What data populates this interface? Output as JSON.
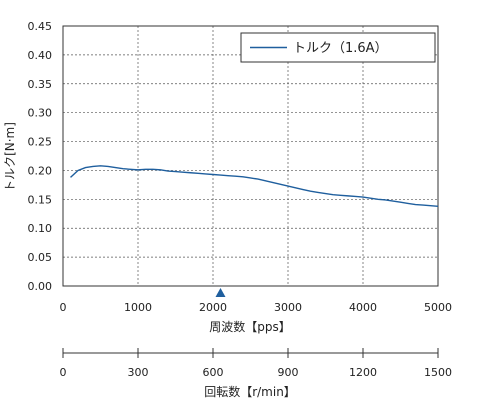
{
  "chart_data": {
    "type": "line",
    "ylabel": "トルク[N·m]",
    "xlabel": "周波数【pps】",
    "xlim": [
      0,
      5000
    ],
    "ylim": [
      0,
      0.45
    ],
    "x_ticks": [
      0,
      1000,
      2000,
      3000,
      4000,
      5000
    ],
    "y_ticks": [
      "0.00",
      "0.05",
      "0.10",
      "0.15",
      "0.20",
      "0.25",
      "0.30",
      "0.35",
      "0.40",
      "0.45"
    ],
    "grid": true,
    "legend_position": "top-right",
    "series": [
      {
        "name": "トルク（1.6A）",
        "color": "#1f5f9e",
        "points": [
          [
            100,
            0.188
          ],
          [
            200,
            0.2
          ],
          [
            300,
            0.205
          ],
          [
            400,
            0.207
          ],
          [
            500,
            0.208
          ],
          [
            600,
            0.207
          ],
          [
            700,
            0.205
          ],
          [
            800,
            0.203
          ],
          [
            900,
            0.202
          ],
          [
            1000,
            0.201
          ],
          [
            1100,
            0.202
          ],
          [
            1200,
            0.202
          ],
          [
            1300,
            0.201
          ],
          [
            1400,
            0.199
          ],
          [
            1500,
            0.198
          ],
          [
            1600,
            0.197
          ],
          [
            1700,
            0.196
          ],
          [
            1800,
            0.195
          ],
          [
            1900,
            0.194
          ],
          [
            2000,
            0.193
          ],
          [
            2100,
            0.192
          ],
          [
            2200,
            0.191
          ],
          [
            2300,
            0.19
          ],
          [
            2400,
            0.189
          ],
          [
            2500,
            0.187
          ],
          [
            2600,
            0.185
          ],
          [
            2700,
            0.182
          ],
          [
            2800,
            0.179
          ],
          [
            2900,
            0.176
          ],
          [
            3000,
            0.173
          ],
          [
            3100,
            0.17
          ],
          [
            3200,
            0.167
          ],
          [
            3300,
            0.164
          ],
          [
            3400,
            0.162
          ],
          [
            3500,
            0.16
          ],
          [
            3600,
            0.158
          ],
          [
            3700,
            0.157
          ],
          [
            3800,
            0.156
          ],
          [
            3900,
            0.155
          ],
          [
            4000,
            0.154
          ],
          [
            4100,
            0.152
          ],
          [
            4200,
            0.15
          ],
          [
            4300,
            0.149
          ],
          [
            4400,
            0.147
          ],
          [
            4500,
            0.145
          ],
          [
            4600,
            0.143
          ],
          [
            4700,
            0.141
          ],
          [
            4800,
            0.14
          ],
          [
            4900,
            0.139
          ],
          [
            5000,
            0.138
          ]
        ]
      }
    ],
    "marker": {
      "x": 2100,
      "color": "#1f5f9e"
    },
    "secondary_axis": {
      "label": "回転数【r/min】",
      "ticks": [
        0,
        300,
        600,
        900,
        1200,
        1500
      ],
      "range": [
        0,
        1500
      ]
    }
  }
}
